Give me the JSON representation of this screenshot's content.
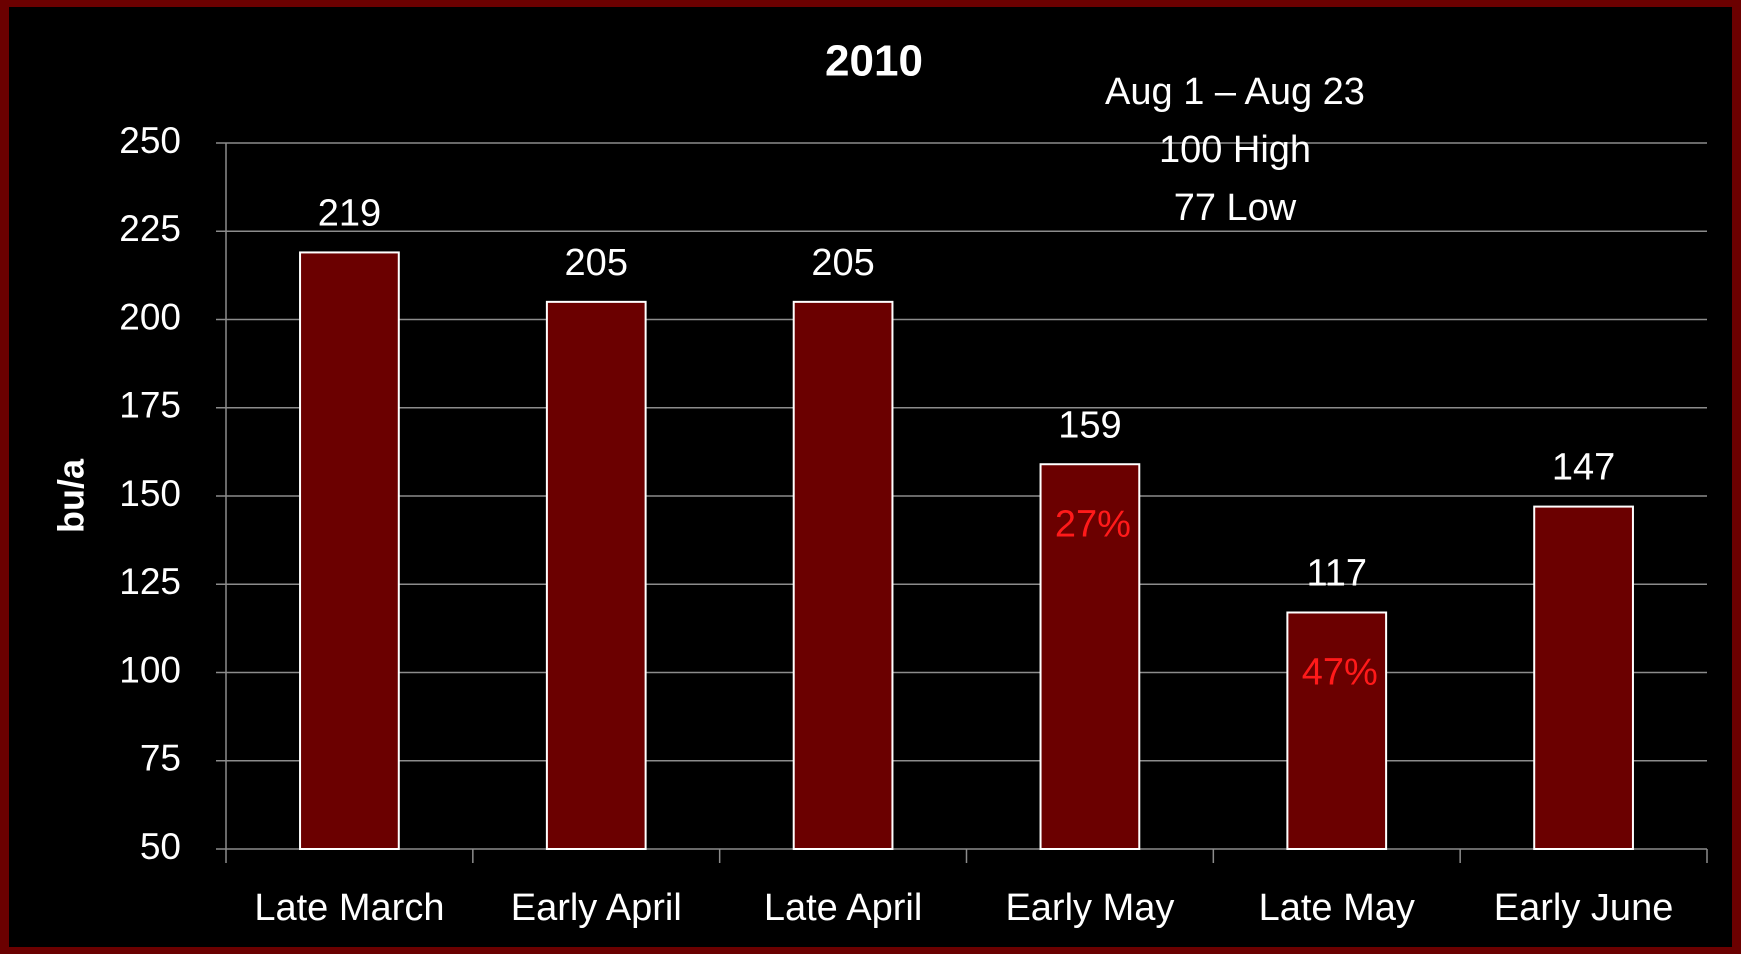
{
  "chart_data": {
    "type": "bar",
    "title": "2010",
    "y_label": "bu/a",
    "categories": [
      "Late March",
      "Early April",
      "Late April",
      "Early May",
      "Late May",
      "Early June"
    ],
    "values": [
      219,
      205,
      205,
      159,
      117,
      147
    ],
    "color": "#6b0000",
    "ylim": [
      50,
      250
    ],
    "yticks": [
      50,
      75,
      100,
      125,
      150,
      175,
      200,
      225,
      250
    ],
    "grid": true,
    "annotations": [
      "Aug 1 – Aug 23",
      "100 High",
      "77 Low"
    ],
    "bar_notes": [
      {
        "category": "Early May",
        "text": "27%",
        "color": "#ff1a1a"
      },
      {
        "category": "Late May",
        "text": "47%",
        "color": "#ff1a1a"
      }
    ]
  }
}
